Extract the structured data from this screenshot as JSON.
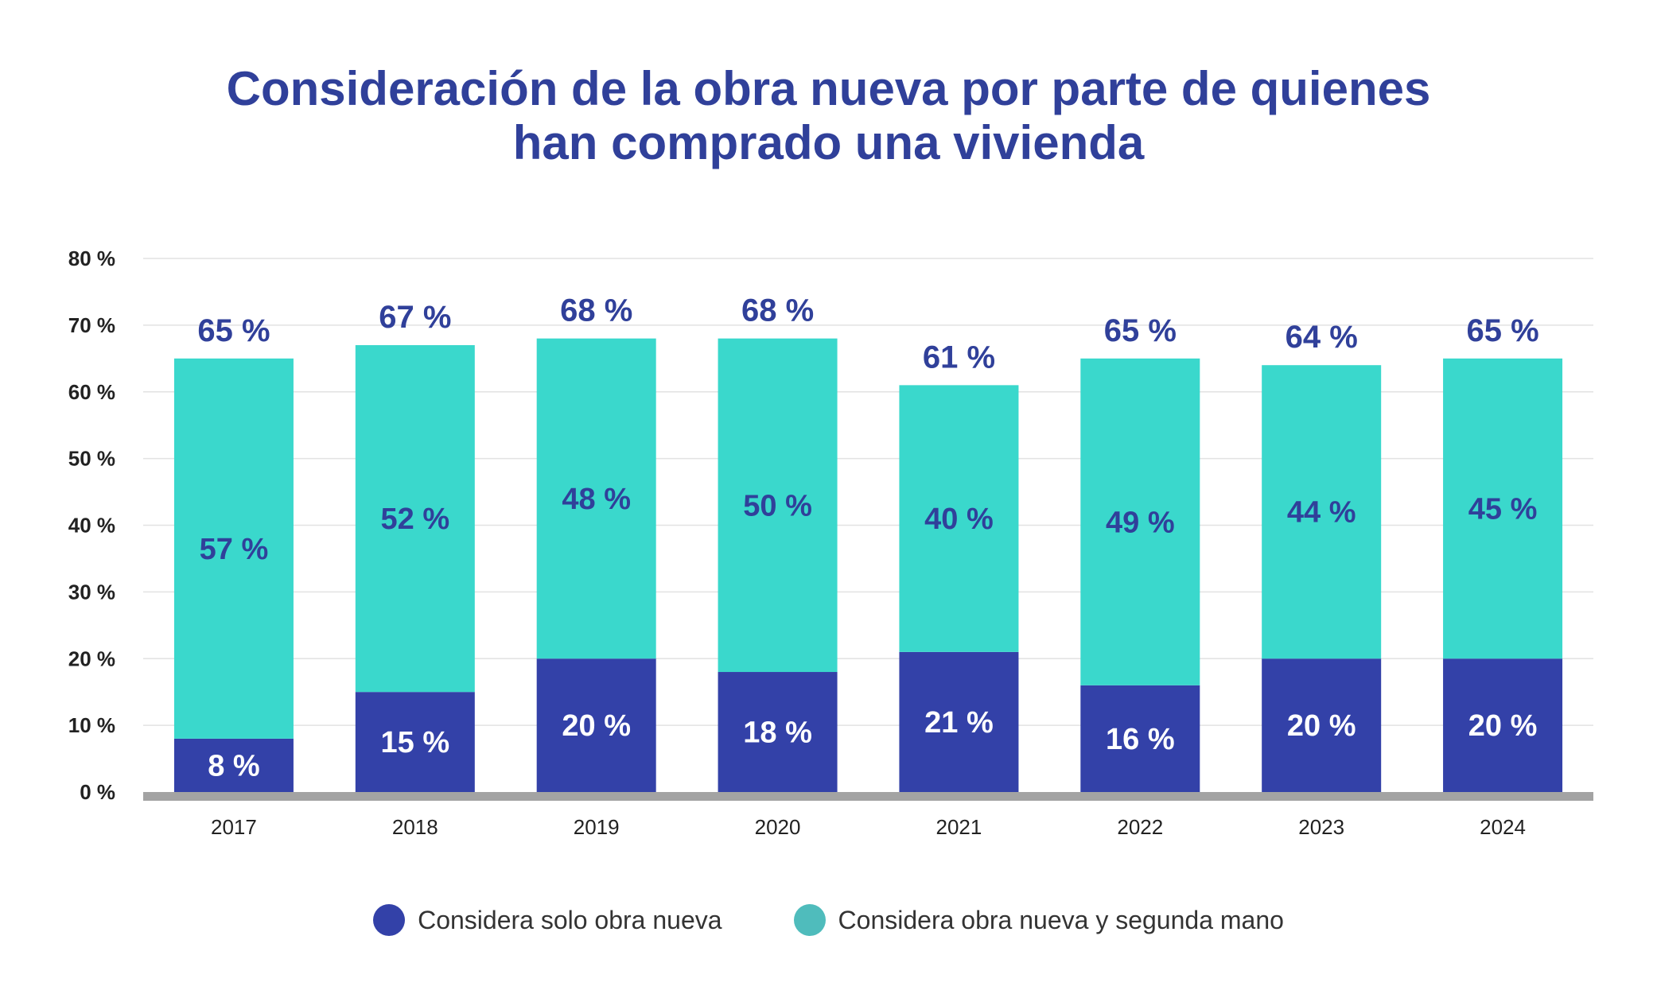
{
  "chart_data": {
    "type": "bar",
    "stacked": true,
    "title_lines": [
      "Consideración de la obra nueva por parte de quienes",
      "han comprado una vivienda"
    ],
    "categories": [
      "2017",
      "2018",
      "2019",
      "2020",
      "2021",
      "2022",
      "2023",
      "2024"
    ],
    "series": [
      {
        "name": "Considera solo obra nueva",
        "color": "#3341a8",
        "label_color": "#ffffff",
        "values": [
          8,
          15,
          20,
          18,
          21,
          16,
          20,
          20
        ],
        "value_labels": [
          "8 %",
          "15 %",
          "20 %",
          "18 %",
          "21 %",
          "16 %",
          "20 %",
          "20 %"
        ]
      },
      {
        "name": "Considera obra nueva y segunda mano",
        "color": "#3ad8cc",
        "label_color": "#30409a",
        "legend_color": "#4fbcbc",
        "values": [
          57,
          52,
          48,
          50,
          40,
          49,
          44,
          45
        ],
        "value_labels": [
          "57 %",
          "52 %",
          "48 %",
          "50 %",
          "40 %",
          "49 %",
          "44 %",
          "45 %"
        ]
      }
    ],
    "totals": [
      65,
      67,
      68,
      68,
      61,
      65,
      64,
      65
    ],
    "total_labels": [
      "65 %",
      "67 %",
      "68 %",
      "68 %",
      "61 %",
      "65 %",
      "64 %",
      "65 %"
    ],
    "y_ticks": [
      0,
      10,
      20,
      30,
      40,
      50,
      60,
      70,
      80
    ],
    "y_tick_labels": [
      "0 %",
      "10 %",
      "20 %",
      "30 %",
      "40 %",
      "50 %",
      "60 %",
      "70 %",
      "80 %"
    ],
    "ylim": [
      0,
      80
    ],
    "grid": true,
    "legend_position": "bottom"
  },
  "legend": {
    "items": [
      {
        "label": "Considera solo obra nueva",
        "color": "#3341a8"
      },
      {
        "label": "Considera obra nueva y segunda mano",
        "color": "#4fbcbc"
      }
    ]
  },
  "colors": {
    "title": "#30409a",
    "gridline": "#e2e2e2",
    "baseline": "#a3a3a3"
  }
}
